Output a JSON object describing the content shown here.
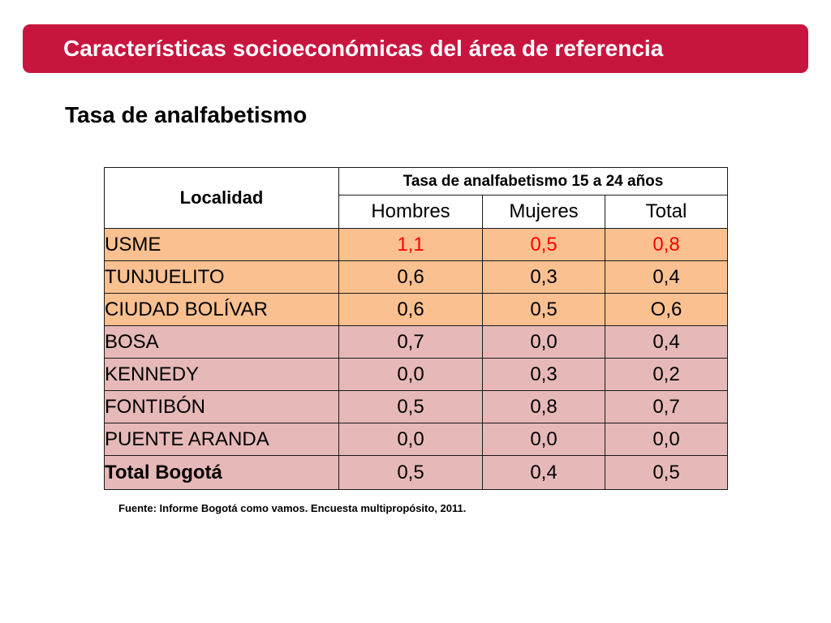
{
  "slide": {
    "title": "Características socioeconómicas del área de referencia",
    "subtitle": "Tasa de analfabetismo",
    "source_note": "Fuente: Informe Bogotá como vamos. Encuesta multipropósito, 2011."
  },
  "table": {
    "locality_header": "Localidad",
    "group_header": "Tasa de analfabetismo 15 a 24 años",
    "columns": [
      "Hombres",
      "Mujeres",
      "Total"
    ],
    "rows": [
      {
        "localidad": "USME",
        "hombres": "1,1",
        "mujeres": "0,5",
        "total": "0,8"
      },
      {
        "localidad": "TUNJUELITO",
        "hombres": "0,6",
        "mujeres": "0,3",
        "total": "0,4"
      },
      {
        "localidad": "CIUDAD BOLÍVAR",
        "hombres": "0,6",
        "mujeres": "0,5",
        "total": "O,6"
      },
      {
        "localidad": "BOSA",
        "hombres": "0,7",
        "mujeres": "0,0",
        "total": "0,4"
      },
      {
        "localidad": "KENNEDY",
        "hombres": "0,0",
        "mujeres": "0,3",
        "total": "0,2"
      },
      {
        "localidad": "FONTIBÓN",
        "hombres": "0,5",
        "mujeres": "0,8",
        "total": "0,7"
      },
      {
        "localidad": "PUENTE ARANDA",
        "hombres": "0,0",
        "mujeres": "0,0",
        "total": "0,0"
      },
      {
        "localidad": "Total Bogotá",
        "hombres": "0,5",
        "mujeres": "0,4",
        "total": "0,5"
      }
    ]
  },
  "colors": {
    "banner": "#c8153f",
    "banner_text": "#ffffff",
    "row_orange": "#fac090",
    "row_pink": "#e6b9b8",
    "highlight_value": "#ff0000"
  }
}
